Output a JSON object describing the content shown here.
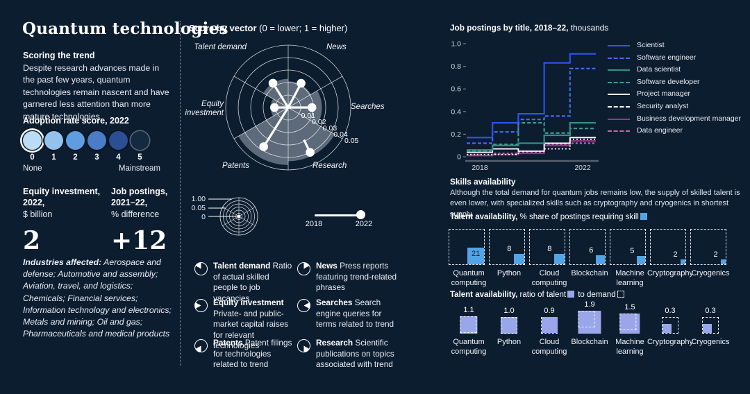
{
  "page_title": "Quantum technologies",
  "colors": {
    "background": "#0d1d30",
    "electric_blue": "#2b55f6",
    "share_square": "#53a4e6",
    "ratio_square": "#9aa6ea",
    "radar_shade": "rgba(203,214,226,0.42)",
    "adoption_scale": [
      "#bcdcf5",
      "#93c2ed",
      "#5f9de0",
      "#4a7cc7",
      "#2c4e92",
      "#152a40"
    ]
  },
  "left": {
    "title": "Quantum technologies",
    "scoring_heading": "Scoring the trend",
    "scoring_text": "Despite research advances made in the past few years, quantum technologies remain nascent and have garnered less attention than more mature technologies.",
    "adoption": {
      "heading": "Adoption rate score, 2022",
      "selected_index": 0,
      "scores": [
        "0",
        "1",
        "2",
        "3",
        "4",
        "5"
      ],
      "min_label": "None",
      "max_label": "Mainstream"
    },
    "stats": [
      {
        "title_line1": "Equity investment,",
        "title_line2": "2022,",
        "unit": "$ billion",
        "value": "2"
      },
      {
        "title_line1": "Job postings,",
        "title_line2": "2021–22,",
        "unit": "% difference",
        "value": "+12"
      }
    ],
    "industries_label": "Industries affected:",
    "industries_text": " Aerospace and defense; Automotive and assembly; Aviation, travel, and logistics; Chemicals; Financial services; Information technology and electronics; Metals and mining; Oil and gas; Pharmaceuticals and medical products"
  },
  "middle": {
    "header_bold": "Score by vector",
    "header_rest": " (0 = lower; 1 = higher)",
    "mini_scale_labels": [
      "1.00",
      "0.05",
      "0"
    ],
    "timeline": {
      "start": "2018",
      "end": "2022"
    },
    "vector_legend": [
      {
        "term": "Talent demand",
        "desc": " Ratio of actual skilled people to job vacancies"
      },
      {
        "term": "Equity investment",
        "desc": " Private- and public-market capital raises for relevant technologies"
      },
      {
        "term": "Patents",
        "desc": " Patent filings for technologies related to trend"
      },
      {
        "term": "News",
        "desc": " Press reports featuring trend-related phrases"
      },
      {
        "term": "Searches",
        "desc": " Search engine queries for terms related to trend"
      },
      {
        "term": "Research",
        "desc": " Scientific publications on topics associated with trend"
      }
    ]
  },
  "right": {
    "jobs_header_bold": "Job postings by title, 2018–22,",
    "jobs_header_rest": " thousands",
    "skills_heading": "Skills availability",
    "skills_text": "Although the total demand for quantum jobs remains low, the supply of skilled talent is even lower, with specialized skills such as cryptography and cryogenics in shortest supply.",
    "ta_share_bold": "Talent availability,",
    "ta_share_rest": " % share of postings requiring skill",
    "ta_ratio_bold": "Talent availability,",
    "ta_ratio_rest1": " ratio of talent",
    "ta_ratio_rest2": " to demand"
  },
  "chart_data": [
    {
      "type": "radar",
      "title": "Score by vector (0 = lower; 1 = higher)",
      "full_scale": [
        0,
        1
      ],
      "ring_ticks": [
        "0.01",
        "0.02",
        "0.03",
        "0.04",
        "0.05"
      ],
      "ring_max": 0.05,
      "year_shown": "2022",
      "vectors": [
        {
          "label": "Talent demand",
          "score": 0.023,
          "shaded_to": 0.023
        },
        {
          "label": "News",
          "score": 0.022,
          "shaded_to": 0.021
        },
        {
          "label": "Searches",
          "score": 0.019,
          "shaded_to": 0.027
        },
        {
          "label": "Research",
          "score": 0.04,
          "shaded_to": 0.043
        },
        {
          "label": "Patents",
          "score": 0.037,
          "shaded_to": 0.046
        },
        {
          "label": "Equity investment",
          "score": 0.011,
          "shaded_to": 0.014
        }
      ]
    },
    {
      "type": "line",
      "style": "step",
      "title": "Job postings by title, 2018–22, thousands",
      "x": [
        2018,
        2019,
        2020,
        2021,
        2022
      ],
      "xtick_labels": [
        "2018",
        "2022"
      ],
      "ylim": [
        0,
        1.0
      ],
      "yticks": [
        "0",
        "0.2",
        "0.4",
        "0.6",
        "0.8",
        "1.0"
      ],
      "series": [
        {
          "name": "Scientist",
          "color": "#2b55f6",
          "dash": false,
          "values": [
            0.17,
            0.3,
            0.38,
            0.83,
            0.91
          ]
        },
        {
          "name": "Software engineer",
          "color": "#4b6cf0",
          "dash": true,
          "values": [
            0.12,
            0.22,
            0.33,
            0.36,
            0.78
          ]
        },
        {
          "name": "Data scientist",
          "color": "#2f9488",
          "dash": false,
          "values": [
            0.06,
            0.1,
            0.12,
            0.19,
            0.3
          ]
        },
        {
          "name": "Software developer",
          "color": "#3aa091",
          "dash": true,
          "values": [
            0.05,
            0.11,
            0.3,
            0.21,
            0.25
          ]
        },
        {
          "name": "Project manager",
          "color": "#ffffff",
          "dash": false,
          "values": [
            0.04,
            0.07,
            0.05,
            0.12,
            0.17
          ]
        },
        {
          "name": "Security analyst",
          "color": "#ffffff",
          "dash": true,
          "values": [
            0.02,
            0.02,
            0.05,
            0.07,
            0.155
          ]
        },
        {
          "name": "Business development manager",
          "color": "#99388b",
          "dash": false,
          "values": [
            0.01,
            0.02,
            0.03,
            0.1,
            0.14
          ]
        },
        {
          "name": "Data engineer",
          "color": "#d3669e",
          "dash": true,
          "values": [
            0.015,
            0.03,
            0.04,
            0.11,
            0.12
          ]
        }
      ]
    },
    {
      "type": "square-area",
      "title": "Talent availability, % share of postings requiring skill",
      "categories": [
        "Quantum computing",
        "Python",
        "Cloud computing",
        "Blockchain",
        "Machine learning",
        "Cryptography",
        "Cryogenics"
      ],
      "values": [
        21,
        8,
        8,
        6,
        5,
        2,
        2
      ],
      "max": 100
    },
    {
      "type": "square-ratio",
      "title": "Talent availability, ratio of talent to demand",
      "categories": [
        "Quantum computing",
        "Python",
        "Cloud computing",
        "Blockchain",
        "Machine learning",
        "Cryptography",
        "Cryogenics"
      ],
      "values": [
        1.1,
        1.0,
        0.9,
        1.9,
        1.5,
        0.3,
        0.3
      ]
    }
  ]
}
